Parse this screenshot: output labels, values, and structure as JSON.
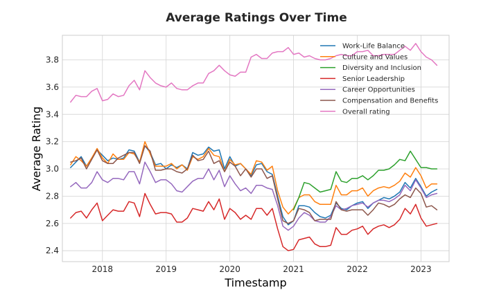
{
  "chart_data": {
    "type": "line",
    "title": "Average Ratings Over Time",
    "xlabel": "Timestamp",
    "ylabel": "Average Rating",
    "x_ticks": [
      "2018",
      "2019",
      "2020",
      "2021",
      "2022",
      "2023"
    ],
    "y_ticks": [
      "2.4",
      "2.6",
      "2.8",
      "3.0",
      "3.2",
      "3.4",
      "3.6",
      "3.8"
    ],
    "xlim": [
      "2017-05-15",
      "2023-06-10"
    ],
    "ylim": [
      2.32,
      3.98
    ],
    "grid": true,
    "legend_position": "top-right",
    "dates": [
      "2017-07",
      "2017-08",
      "2017-09",
      "2017-10",
      "2017-11",
      "2017-12",
      "2018-01",
      "2018-02",
      "2018-03",
      "2018-04",
      "2018-05",
      "2018-06",
      "2018-07",
      "2018-08",
      "2018-09",
      "2018-10",
      "2018-11",
      "2018-12",
      "2019-01",
      "2019-02",
      "2019-03",
      "2019-04",
      "2019-05",
      "2019-06",
      "2019-07",
      "2019-08",
      "2019-09",
      "2019-10",
      "2019-11",
      "2019-12",
      "2020-01",
      "2020-02",
      "2020-03",
      "2020-04",
      "2020-05",
      "2020-06",
      "2020-07",
      "2020-08",
      "2020-09",
      "2020-10",
      "2020-11",
      "2020-12",
      "2021-01",
      "2021-02",
      "2021-03",
      "2021-04",
      "2021-05",
      "2021-06",
      "2021-07",
      "2021-08",
      "2021-09",
      "2021-10",
      "2021-11",
      "2021-12",
      "2022-01",
      "2022-02",
      "2022-03",
      "2022-04",
      "2022-05",
      "2022-06",
      "2022-07",
      "2022-08",
      "2022-09",
      "2022-10",
      "2022-11",
      "2022-12",
      "2023-01",
      "2023-02",
      "2023-03",
      "2023-04"
    ],
    "series": [
      {
        "name": "Work-Life Balance",
        "color": "#1f77b4",
        "values": [
          3.01,
          3.05,
          3.09,
          3.02,
          3.08,
          3.14,
          3.1,
          3.06,
          3.08,
          3.07,
          3.08,
          3.14,
          3.13,
          3.05,
          3.17,
          3.12,
          3.03,
          3.04,
          3.0,
          3.03,
          3.01,
          3.03,
          3.0,
          3.12,
          3.1,
          3.11,
          3.16,
          3.13,
          3.14,
          3.0,
          3.09,
          3.02,
          3.04,
          3.0,
          2.95,
          3.03,
          3.04,
          2.98,
          2.96,
          2.8,
          2.65,
          2.59,
          2.62,
          2.73,
          2.73,
          2.72,
          2.68,
          2.65,
          2.64,
          2.66,
          2.75,
          2.71,
          2.7,
          2.73,
          2.75,
          2.76,
          2.71,
          2.75,
          2.77,
          2.79,
          2.78,
          2.8,
          2.83,
          2.9,
          2.86,
          2.93,
          2.87,
          2.8,
          2.83,
          2.85
        ]
      },
      {
        "name": "Culture and Values",
        "color": "#ff7f0e",
        "values": [
          3.03,
          3.09,
          3.06,
          3.02,
          3.08,
          3.15,
          3.08,
          3.04,
          3.11,
          3.07,
          3.07,
          3.12,
          3.11,
          3.05,
          3.2,
          3.11,
          3.02,
          3.02,
          3.02,
          3.04,
          3.0,
          3.03,
          2.99,
          3.09,
          3.07,
          3.09,
          3.15,
          3.1,
          3.09,
          2.98,
          3.07,
          3.03,
          3.04,
          3.0,
          2.96,
          3.06,
          3.05,
          2.99,
          3.02,
          2.84,
          2.72,
          2.67,
          2.71,
          2.79,
          2.81,
          2.81,
          2.76,
          2.74,
          2.74,
          2.74,
          2.88,
          2.81,
          2.81,
          2.84,
          2.84,
          2.86,
          2.8,
          2.84,
          2.86,
          2.87,
          2.86,
          2.88,
          2.91,
          2.97,
          2.94,
          3.01,
          2.95,
          2.86,
          2.89,
          2.89
        ]
      },
      {
        "name": "Diversity and Inclusion",
        "color": "#2ca02c",
        "values": [
          null,
          null,
          null,
          null,
          null,
          null,
          null,
          null,
          null,
          null,
          null,
          null,
          null,
          null,
          null,
          null,
          null,
          null,
          null,
          null,
          null,
          null,
          null,
          null,
          null,
          null,
          null,
          null,
          null,
          null,
          null,
          null,
          null,
          null,
          null,
          null,
          null,
          null,
          null,
          null,
          null,
          null,
          2.7,
          2.79,
          2.9,
          2.89,
          2.86,
          2.83,
          2.84,
          2.85,
          2.98,
          2.91,
          2.9,
          2.93,
          2.93,
          2.95,
          2.92,
          2.95,
          2.99,
          2.99,
          3.0,
          3.03,
          3.07,
          3.06,
          3.13,
          3.07,
          3.01,
          3.01,
          3.0,
          3.0
        ]
      },
      {
        "name": "Senior Leadership",
        "color": "#d62728",
        "values": [
          2.64,
          2.68,
          2.69,
          2.64,
          2.7,
          2.75,
          2.62,
          2.66,
          2.7,
          2.69,
          2.69,
          2.76,
          2.75,
          2.65,
          2.82,
          2.74,
          2.67,
          2.68,
          2.68,
          2.67,
          2.61,
          2.61,
          2.64,
          2.71,
          2.7,
          2.69,
          2.76,
          2.7,
          2.78,
          2.63,
          2.71,
          2.68,
          2.63,
          2.66,
          2.63,
          2.71,
          2.71,
          2.66,
          2.71,
          2.56,
          2.43,
          2.4,
          2.41,
          2.48,
          2.49,
          2.5,
          2.45,
          2.43,
          2.43,
          2.44,
          2.57,
          2.52,
          2.52,
          2.55,
          2.56,
          2.58,
          2.52,
          2.56,
          2.58,
          2.59,
          2.57,
          2.59,
          2.63,
          2.71,
          2.67,
          2.74,
          2.64,
          2.58,
          2.59,
          2.6
        ]
      },
      {
        "name": "Career Opportunities",
        "color": "#9467bd",
        "values": [
          2.87,
          2.9,
          2.86,
          2.86,
          2.9,
          2.98,
          2.92,
          2.9,
          2.93,
          2.93,
          2.92,
          2.98,
          2.98,
          2.89,
          3.05,
          2.98,
          2.9,
          2.92,
          2.92,
          2.89,
          2.84,
          2.83,
          2.87,
          2.91,
          2.93,
          2.93,
          3.0,
          2.92,
          2.99,
          2.87,
          2.95,
          2.89,
          2.84,
          2.86,
          2.82,
          2.88,
          2.88,
          2.86,
          2.85,
          2.73,
          2.58,
          2.55,
          2.58,
          2.64,
          2.68,
          2.66,
          2.62,
          2.61,
          2.61,
          2.65,
          2.73,
          2.7,
          2.71,
          2.73,
          2.74,
          2.75,
          2.72,
          2.75,
          2.77,
          2.77,
          2.76,
          2.78,
          2.81,
          2.88,
          2.84,
          2.92,
          2.86,
          2.79,
          2.81,
          2.82
        ]
      },
      {
        "name": "Compensation and Benefits",
        "color": "#8c564b",
        "values": [
          3.05,
          3.06,
          3.08,
          3.0,
          3.07,
          3.14,
          3.06,
          3.04,
          3.04,
          3.08,
          3.1,
          3.12,
          3.12,
          3.04,
          3.17,
          3.13,
          2.99,
          2.99,
          3.0,
          3.0,
          2.98,
          2.97,
          3.0,
          3.1,
          3.06,
          3.07,
          3.13,
          3.04,
          3.06,
          2.98,
          3.05,
          3.02,
          2.95,
          3.0,
          2.94,
          3.0,
          3.0,
          2.93,
          2.95,
          2.78,
          2.62,
          2.6,
          2.62,
          2.71,
          2.7,
          2.68,
          2.62,
          2.63,
          2.63,
          2.63,
          2.76,
          2.7,
          2.69,
          2.7,
          2.7,
          2.7,
          2.66,
          2.7,
          2.75,
          2.74,
          2.72,
          2.74,
          2.78,
          2.81,
          2.79,
          2.86,
          2.82,
          2.72,
          2.73,
          2.7
        ]
      },
      {
        "name": "Overall rating",
        "color": "#e377c2",
        "values": [
          3.49,
          3.54,
          3.53,
          3.53,
          3.57,
          3.59,
          3.5,
          3.51,
          3.55,
          3.53,
          3.54,
          3.61,
          3.65,
          3.58,
          3.72,
          3.67,
          3.63,
          3.61,
          3.6,
          3.63,
          3.59,
          3.58,
          3.58,
          3.61,
          3.63,
          3.63,
          3.7,
          3.72,
          3.76,
          3.72,
          3.69,
          3.68,
          3.71,
          3.71,
          3.82,
          3.84,
          3.81,
          3.81,
          3.85,
          3.86,
          3.86,
          3.89,
          3.84,
          3.85,
          3.82,
          3.83,
          3.81,
          3.8,
          3.8,
          3.81,
          3.83,
          3.84,
          3.83,
          3.83,
          3.86,
          3.86,
          3.87,
          3.83,
          3.83,
          3.84,
          3.84,
          3.84,
          3.87,
          3.9,
          3.87,
          3.92,
          3.86,
          3.82,
          3.8,
          3.76
        ]
      }
    ]
  }
}
